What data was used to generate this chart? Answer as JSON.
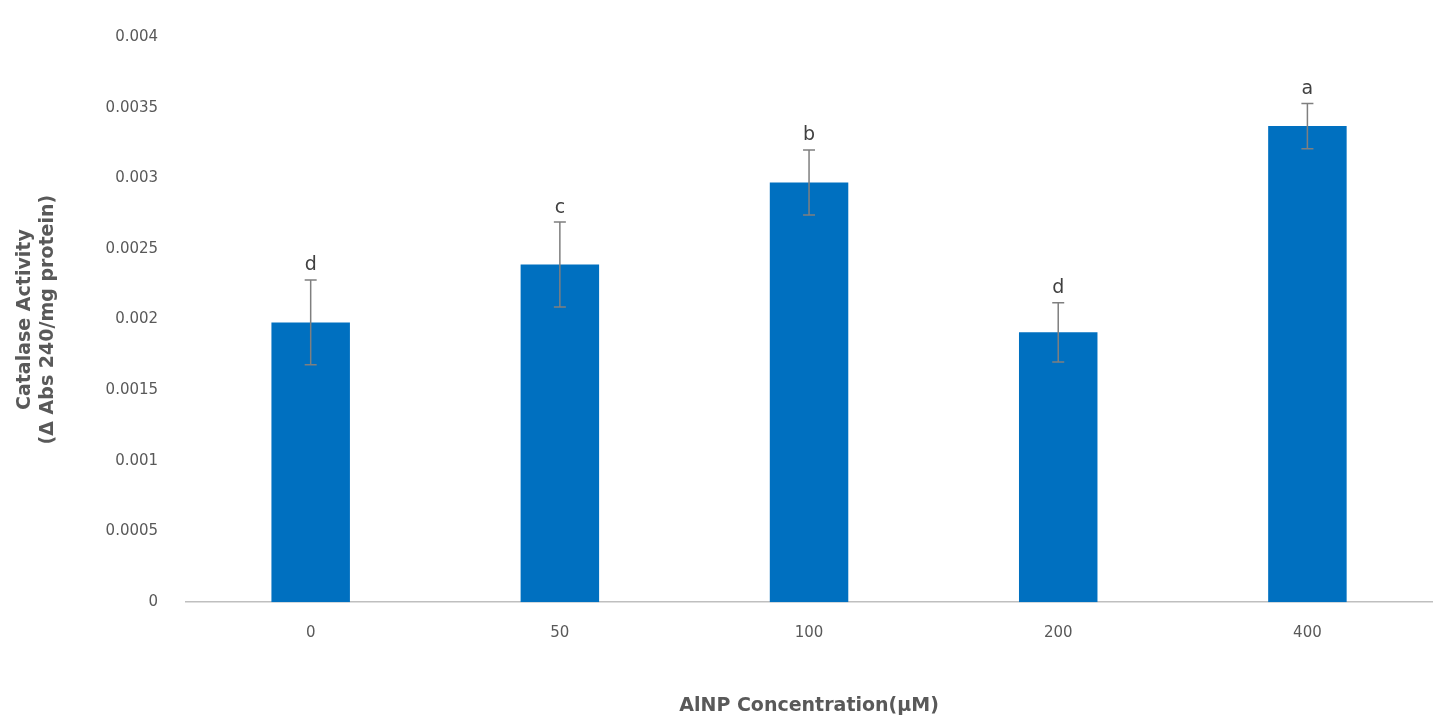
{
  "chart_data": {
    "type": "bar",
    "xlabel": "AlNP Concentration(µM)",
    "ylabel": "Catalase Activity\n(Δ Abs 240/mg protein)",
    "categories": [
      "0",
      "50",
      "100",
      "200",
      "400"
    ],
    "values": [
      0.00198,
      0.00239,
      0.00297,
      0.00191,
      0.00337
    ],
    "errors": [
      0.0003,
      0.0003,
      0.00023,
      0.00021,
      0.00016
    ],
    "color": "#0070c0",
    "ylim": [
      0,
      0.004
    ],
    "yticks": [
      0,
      0.0005,
      0.001,
      0.0015,
      0.002,
      0.0025,
      0.003,
      0.0035,
      0.004
    ],
    "grid": false,
    "legend": false,
    "annotations": [
      {
        "text": "d",
        "x": "0",
        "y": 0.00228
      },
      {
        "text": "c",
        "x": "50",
        "y": 0.00269
      },
      {
        "text": "b",
        "x": "100",
        "y": 0.0032
      },
      {
        "text": "d",
        "x": "200",
        "y": 0.00212
      },
      {
        "text": "a",
        "x": "400",
        "y": 0.00353
      }
    ]
  }
}
